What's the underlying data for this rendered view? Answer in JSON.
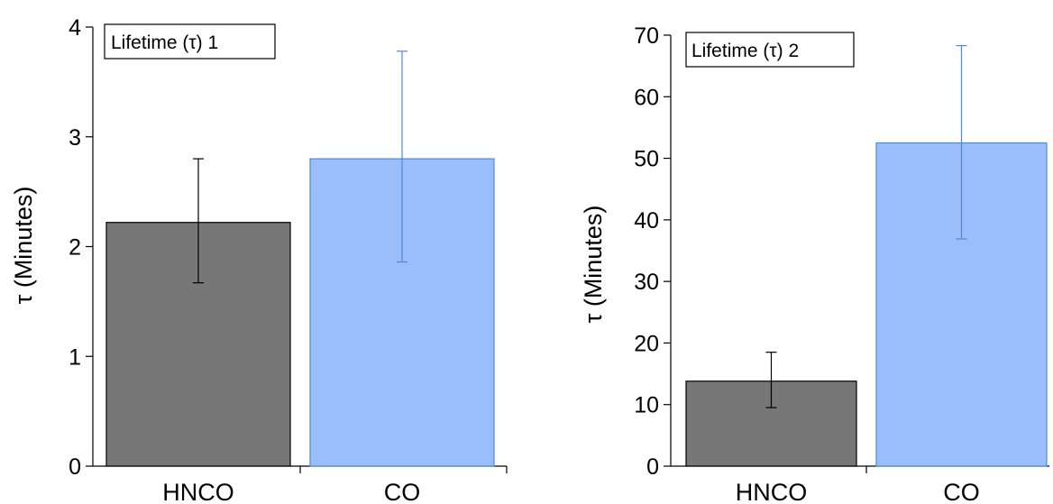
{
  "colors": {
    "hnco": "#777777",
    "co": "#9bbdf9",
    "hnco_error": "#000000",
    "co_error": "#4a8be0",
    "axis": "#000000"
  },
  "chart_data": [
    {
      "type": "bar",
      "title": "Lifetime (τ) 1",
      "ylabel": "τ (Minutes)",
      "xlabel": "",
      "categories": [
        "HNCO",
        "CO"
      ],
      "values": [
        2.22,
        2.8
      ],
      "error_low": [
        1.67,
        1.86
      ],
      "error_high": [
        2.8,
        3.78
      ],
      "ylim": [
        0,
        4
      ],
      "yticks": [
        0,
        1,
        2,
        3,
        4
      ],
      "grid": false,
      "legend_position": "top-left"
    },
    {
      "type": "bar",
      "title": "Lifetime (τ) 2",
      "ylabel": "τ (Minutes)",
      "xlabel": "",
      "categories": [
        "HNCO",
        "CO"
      ],
      "values": [
        13.8,
        52.5
      ],
      "error_low": [
        9.5,
        36.9
      ],
      "error_high": [
        18.5,
        68.3
      ],
      "ylim": [
        0,
        70
      ],
      "yticks": [
        0,
        10,
        20,
        30,
        40,
        50,
        60,
        70
      ],
      "grid": false,
      "legend_position": "top-left"
    }
  ]
}
